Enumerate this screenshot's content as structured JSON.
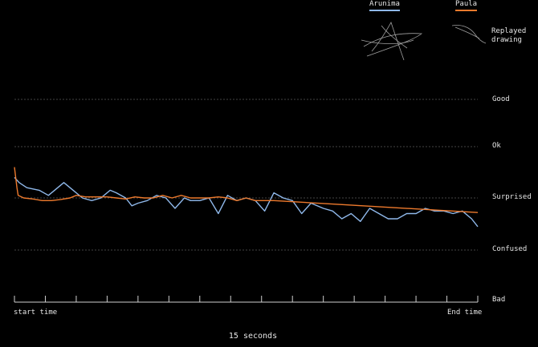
{
  "legend": {
    "arunima": {
      "name": "Arunima",
      "color": "#8fb8ea"
    },
    "paula": {
      "name": "Paula",
      "color": "#ee7a2d"
    }
  },
  "replayed_label": "Replayed drawing",
  "levels": [
    "Good",
    "Ok",
    "Surprised",
    "Confused",
    "Bad"
  ],
  "axis": {
    "start_label": "start time",
    "end_label": "End time"
  },
  "duration_label": "15 seconds",
  "chart_data": {
    "type": "line",
    "x_range": [
      0,
      15
    ],
    "y_levels": [
      "Bad",
      "Confused",
      "Surprised",
      "Ok",
      "Good"
    ],
    "ylim": [
      0,
      4
    ],
    "grid": true,
    "series": [
      {
        "name": "Arunima",
        "color": "#8fb8ea",
        "x": [
          0,
          0.15,
          0.4,
          0.8,
          1.1,
          1.3,
          1.6,
          1.9,
          2.2,
          2.5,
          2.8,
          3.1,
          3.3,
          3.6,
          3.8,
          4.0,
          4.3,
          4.6,
          4.9,
          5.2,
          5.5,
          5.7,
          6.0,
          6.3,
          6.6,
          6.9,
          7.2,
          7.5,
          7.8,
          8.1,
          8.4,
          8.7,
          9.0,
          9.3,
          9.6,
          10.0,
          10.3,
          10.6,
          10.9,
          11.2,
          11.5,
          11.8,
          12.1,
          12.4,
          12.7,
          13.0,
          13.3,
          13.6,
          13.9,
          14.2,
          14.5,
          14.8,
          15.0
        ],
        "y": [
          2.4,
          2.3,
          2.2,
          2.15,
          2.05,
          2.15,
          2.3,
          2.15,
          2.0,
          1.95,
          2.0,
          2.15,
          2.1,
          2.0,
          1.85,
          1.9,
          1.95,
          2.05,
          2.0,
          1.8,
          2.0,
          1.95,
          1.95,
          2.0,
          1.7,
          2.05,
          1.95,
          2.0,
          1.95,
          1.75,
          2.1,
          2.0,
          1.95,
          1.7,
          1.9,
          1.8,
          1.75,
          1.6,
          1.7,
          1.55,
          1.8,
          1.7,
          1.6,
          1.6,
          1.7,
          1.7,
          1.8,
          1.75,
          1.75,
          1.7,
          1.75,
          1.6,
          1.45
        ]
      },
      {
        "name": "Paula",
        "color": "#ee7a2d",
        "x": [
          0,
          0.08,
          0.12,
          0.3,
          0.6,
          0.9,
          1.2,
          1.5,
          1.8,
          2.0,
          2.3,
          2.6,
          3.0,
          3.3,
          3.6,
          3.9,
          4.2,
          4.5,
          4.8,
          5.1,
          5.4,
          5.7,
          6.0,
          6.3,
          6.6,
          6.9,
          7.2,
          7.5,
          7.8,
          8.1,
          8.4,
          15.0
        ],
        "y": [
          2.6,
          2.2,
          2.05,
          2.0,
          1.98,
          1.95,
          1.95,
          1.97,
          2.0,
          2.05,
          2.02,
          2.02,
          2.02,
          2.0,
          1.98,
          2.02,
          2.0,
          2.0,
          2.05,
          2.0,
          2.05,
          2.0,
          2.0,
          2.0,
          2.02,
          2.0,
          1.95,
          2.0,
          1.95,
          1.95,
          1.95,
          1.72
        ]
      }
    ]
  }
}
